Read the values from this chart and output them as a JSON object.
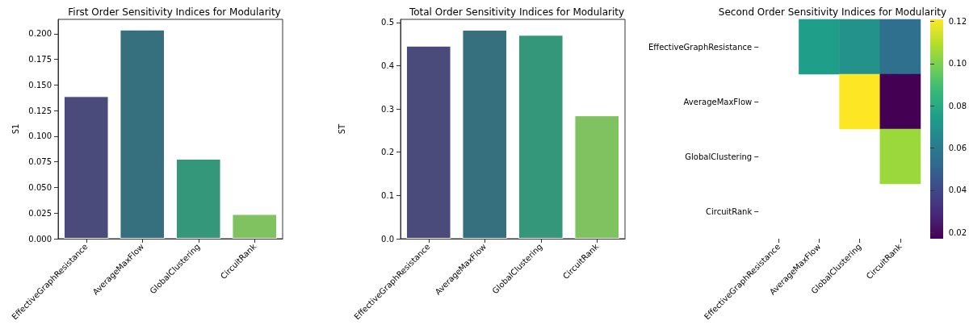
{
  "chart_data": [
    {
      "type": "bar",
      "title": "First Order Sensitivity Indices for Modularity",
      "ylabel": "S1",
      "categories": [
        "EffectiveGraphResistance",
        "AverageMaxFlow",
        "GlobalClustering",
        "CircuitRank"
      ],
      "values": [
        0.139,
        0.204,
        0.078,
        0.024
      ],
      "colors": [
        "#4a4a7b",
        "#36707e",
        "#349779",
        "#80c160"
      ],
      "ylim": [
        0,
        0.214
      ],
      "yticks": [
        {
          "value": 0,
          "label": "0.000"
        },
        {
          "value": 0.025,
          "label": "0.025"
        },
        {
          "value": 0.05,
          "label": "0.050"
        },
        {
          "value": 0.075,
          "label": "0.075"
        },
        {
          "value": 0.1,
          "label": "0.100"
        },
        {
          "value": 0.125,
          "label": "0.125"
        },
        {
          "value": 0.15,
          "label": "0.150"
        },
        {
          "value": 0.175,
          "label": "0.175"
        },
        {
          "value": 0.2,
          "label": "0.200"
        }
      ],
      "grid": false
    },
    {
      "type": "bar",
      "title": "Total Order Sensitivity Indices for Modularity",
      "ylabel": "ST",
      "categories": [
        "EffectiveGraphResistance",
        "AverageMaxFlow",
        "GlobalClustering",
        "CircuitRank"
      ],
      "values": [
        0.446,
        0.483,
        0.471,
        0.285
      ],
      "colors": [
        "#4a4a7b",
        "#36707e",
        "#349779",
        "#80c160"
      ],
      "ylim": [
        0,
        0.507
      ],
      "yticks": [
        {
          "value": 0,
          "label": "0.0"
        },
        0.1,
        0.2,
        0.3,
        0.4,
        0.5
      ],
      "grid": false
    },
    {
      "type": "heatmap",
      "title": "Second Order Sensitivity Indices for Modularity",
      "categories": [
        "EffectiveGraphResistance",
        "AverageMaxFlow",
        "GlobalClustering",
        "CircuitRank"
      ],
      "y_categories": [
        "EffectiveGraphResistance",
        "AverageMaxFlow",
        "GlobalClustering",
        "CircuitRank"
      ],
      "cells": [
        [
          null,
          0.075,
          0.07,
          0.055
        ],
        [
          null,
          null,
          0.121,
          0.017
        ],
        [
          null,
          null,
          null,
          0.105
        ],
        [
          null,
          null,
          null,
          null
        ]
      ],
      "clim": [
        0.017,
        0.121
      ],
      "cticks": [
        0.02,
        0.04,
        0.06,
        0.08,
        {
          "value": 0.1,
          "label": "0.10"
        },
        0.12
      ]
    }
  ]
}
